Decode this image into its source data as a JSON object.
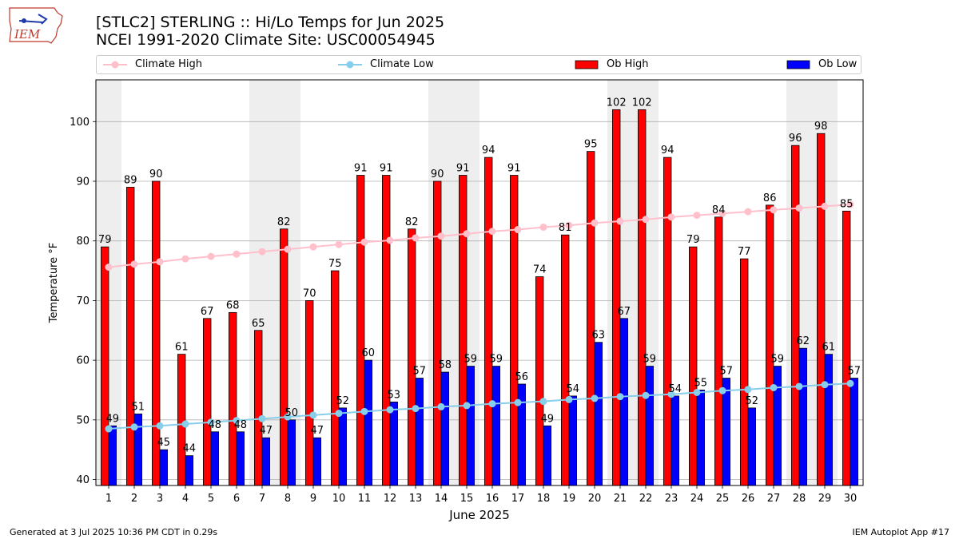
{
  "header": {
    "logo_text": "IEM",
    "title_line1": "[STLC2] STERLING :: Hi/Lo Temps for Jun 2025",
    "title_line2": "NCEI 1991-2020 Climate Site: USC00054945"
  },
  "legend": {
    "climate_high": "Climate High",
    "climate_low": "Climate Low",
    "ob_high": "Ob High",
    "ob_low": "Ob Low"
  },
  "footer": {
    "generated": "Generated at 3 Jul 2025 10:36 PM CDT in 0.29s",
    "app": "IEM Autoplot App #17"
  },
  "colors": {
    "ob_high": "#ff0000",
    "ob_low": "#0000ff",
    "climate_high": "#ffc0cb",
    "climate_low": "#87ceeb",
    "weekend_band": "#eeeeee",
    "grid": "#b0b0b0"
  },
  "chart_data": {
    "type": "bar",
    "xlabel": "June 2025",
    "ylabel": "Temperature °F",
    "ylim": [
      39,
      107
    ],
    "yticks": [
      40,
      50,
      60,
      70,
      80,
      90,
      100
    ],
    "grid": "horizontal",
    "legend_position": "top",
    "categories": [
      1,
      2,
      3,
      4,
      5,
      6,
      7,
      8,
      9,
      10,
      11,
      12,
      13,
      14,
      15,
      16,
      17,
      18,
      19,
      20,
      21,
      22,
      23,
      24,
      25,
      26,
      27,
      28,
      29,
      30
    ],
    "weekend_days": [
      1,
      7,
      8,
      14,
      15,
      21,
      22,
      28,
      29
    ],
    "series": [
      {
        "name": "Ob High",
        "kind": "bar",
        "values": [
          79,
          89,
          90,
          61,
          67,
          68,
          65,
          82,
          70,
          75,
          91,
          91,
          82,
          90,
          91,
          94,
          91,
          74,
          81,
          95,
          102,
          102,
          94,
          79,
          84,
          77,
          86,
          96,
          98,
          85
        ]
      },
      {
        "name": "Ob Low",
        "kind": "bar",
        "values": [
          49,
          51,
          45,
          44,
          48,
          48,
          47,
          50,
          47,
          52,
          60,
          53,
          57,
          58,
          59,
          59,
          56,
          49,
          54,
          63,
          67,
          59,
          54,
          55,
          57,
          52,
          59,
          62,
          61,
          57
        ]
      },
      {
        "name": "Climate High",
        "kind": "line",
        "values": [
          75.6,
          76.1,
          76.5,
          77.0,
          77.4,
          77.8,
          78.2,
          78.6,
          79.0,
          79.4,
          79.8,
          80.1,
          80.5,
          80.8,
          81.2,
          81.6,
          81.9,
          82.3,
          82.6,
          83.0,
          83.3,
          83.6,
          84.0,
          84.3,
          84.6,
          84.9,
          85.2,
          85.5,
          85.8,
          86.1
        ]
      },
      {
        "name": "Climate Low",
        "kind": "line",
        "values": [
          48.5,
          48.8,
          49.0,
          49.3,
          49.6,
          49.9,
          50.2,
          50.5,
          50.8,
          51.1,
          51.4,
          51.7,
          51.9,
          52.2,
          52.4,
          52.7,
          52.9,
          53.1,
          53.4,
          53.6,
          53.9,
          54.1,
          54.3,
          54.6,
          54.9,
          55.1,
          55.4,
          55.6,
          55.9,
          56.1
        ]
      }
    ]
  }
}
